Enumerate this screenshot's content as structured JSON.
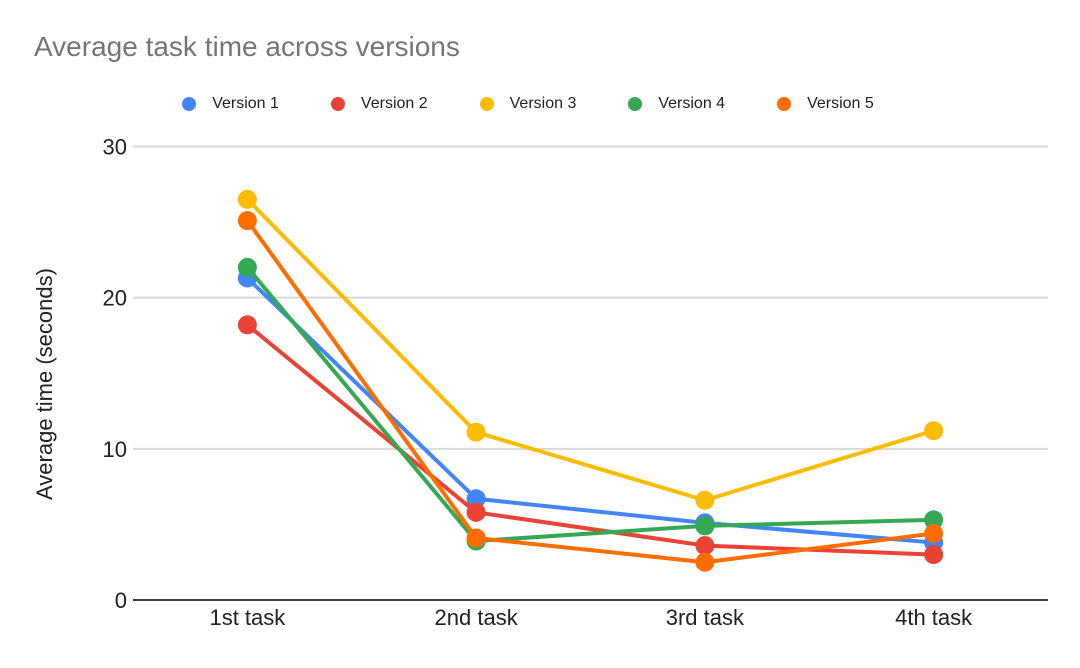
{
  "title": "Average task time across versions",
  "y_axis": {
    "title": "Average time (seconds)",
    "ticks": [
      30,
      20,
      10,
      0
    ]
  },
  "x_axis": {
    "labels": [
      "1st task",
      "2nd task",
      "3rd task",
      "4th task"
    ]
  },
  "chart_data": {
    "type": "line",
    "categories": [
      "1st task",
      "2nd task",
      "3rd task",
      "4th task"
    ],
    "series": [
      {
        "name": "Version 1",
        "color": "#4285f4",
        "values": [
          21.3,
          6.7,
          5.1,
          3.8
        ]
      },
      {
        "name": "Version 2",
        "color": "#ea4335",
        "values": [
          18.2,
          5.8,
          3.6,
          3.0
        ]
      },
      {
        "name": "Version 3",
        "color": "#fbbc04",
        "values": [
          26.5,
          11.1,
          6.6,
          11.2
        ]
      },
      {
        "name": "Version 4",
        "color": "#34a853",
        "values": [
          22.0,
          3.9,
          4.9,
          5.3
        ]
      },
      {
        "name": "Version 5",
        "color": "#ff6d01",
        "values": [
          25.1,
          4.1,
          2.5,
          4.4
        ]
      }
    ],
    "title": "Average task time across versions",
    "xlabel": "",
    "ylabel": "Average time (seconds)",
    "ylim": [
      0,
      30
    ],
    "grid": true,
    "legend_position": "top",
    "marker": "circle",
    "title_color": "#757575",
    "axis_text_color": "#202124",
    "legend_text_color": "#202124",
    "gridline_color": "#d9d9d9",
    "baseline_color": "#424242",
    "background_color": "#ffffff"
  }
}
